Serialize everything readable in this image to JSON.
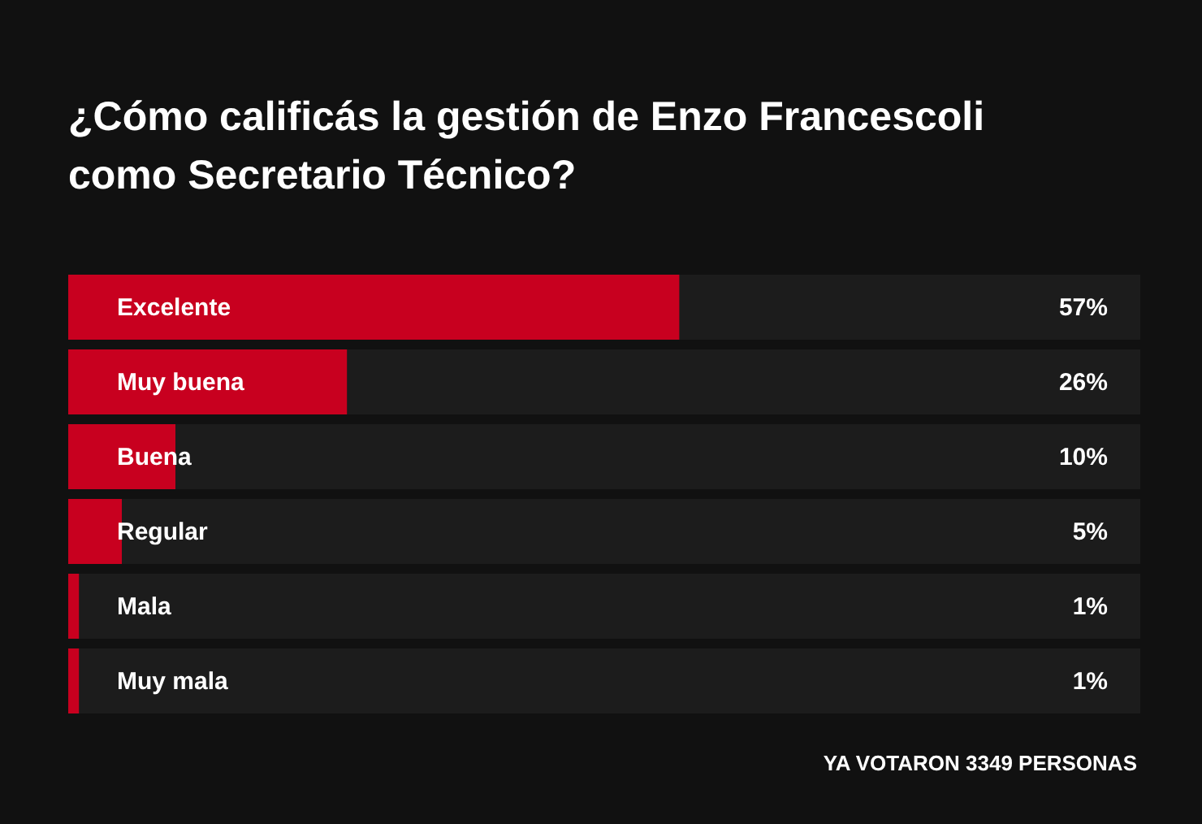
{
  "chart_data": {
    "type": "bar",
    "orientation": "horizontal",
    "title": "¿Cómo calificás la gestión de Enzo Francescoli como Secretario Técnico?",
    "categories": [
      "Excelente",
      "Muy buena",
      "Buena",
      "Regular",
      "Mala",
      "Muy mala"
    ],
    "values": [
      57,
      26,
      10,
      5,
      1,
      1
    ],
    "color": "#c8001f",
    "value_labels": [
      "57%",
      "26%",
      "10%",
      "5%",
      "1%",
      "1%"
    ],
    "xlim": [
      0,
      100
    ],
    "annotations": [
      "YA VOTARON 3349 PERSONAS"
    ]
  }
}
